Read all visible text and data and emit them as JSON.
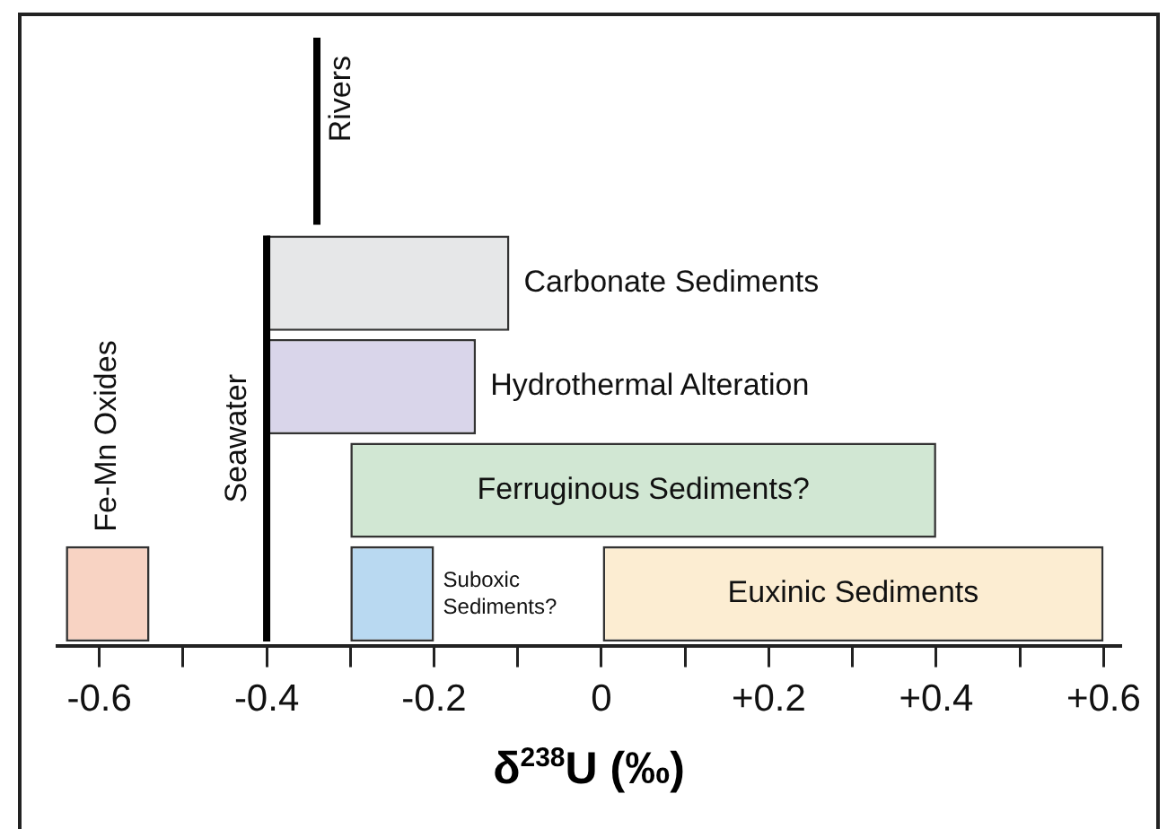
{
  "chart_data": {
    "type": "bar",
    "orientation": "horizontal",
    "xlabel": "δ$^{238}$U (‰)",
    "categories": [
      null,
      null,
      null,
      null
    ],
    "series": [
      {
        "name": "Fe-Mn Oxides",
        "color": "#f8d3c3",
        "values": [
          null,
          null,
          null,
          0.1
        ],
        "base": [
          null,
          null,
          null,
          -0.64
        ]
      },
      {
        "name": "Carbonate Sediments",
        "color": "#e6e7e8",
        "values": [
          0.29,
          null,
          null,
          null
        ],
        "base": [
          -0.4,
          null,
          null,
          null
        ]
      },
      {
        "name": "Hydrothermal Alteration",
        "color": "#d9d5ea",
        "values": [
          null,
          0.25,
          null,
          null
        ],
        "base": [
          null,
          -0.4,
          null,
          null
        ]
      },
      {
        "name": "Ferruginous Sediments?",
        "color": "#d1e7d3",
        "values": [
          null,
          null,
          0.7,
          null
        ],
        "base": [
          null,
          null,
          -0.3,
          null
        ]
      },
      {
        "name": "Suboxic Sediments?",
        "color": "#b9d9f1",
        "values": [
          null,
          null,
          null,
          0.1
        ],
        "base": [
          null,
          null,
          null,
          -0.3
        ]
      },
      {
        "name": "Euxinic Sediments",
        "color": "#fcedd2",
        "values": [
          null,
          null,
          null,
          0.6
        ],
        "base": [
          null,
          null,
          null,
          0
        ]
      }
    ],
    "ref_lines": [
      {
        "axis": "x",
        "value": -0.34,
        "label": "Rivers",
        "color": "#000000"
      },
      {
        "axis": "x",
        "value": -0.4,
        "label": "Seawater",
        "color": "#000000"
      }
    ],
    "xlim": [
      -0.65,
      0.62
    ],
    "xticks": [
      -0.6,
      {
        "value": -0.5,
        "label": null
      },
      -0.4,
      {
        "value": -0.3,
        "label": null
      },
      -0.2,
      {
        "value": -0.1,
        "label": null
      },
      0,
      {
        "value": 0.1,
        "label": null
      },
      {
        "value": 0.2,
        "label": "+0.2"
      },
      {
        "value": 0.3,
        "label": null
      },
      {
        "value": 0.4,
        "label": "+0.4"
      },
      {
        "value": 0.5,
        "label": null
      },
      {
        "value": 0.6,
        "label": "+0.6"
      }
    ],
    "tick_labels": "x",
    "grid": false,
    "legend": false
  }
}
